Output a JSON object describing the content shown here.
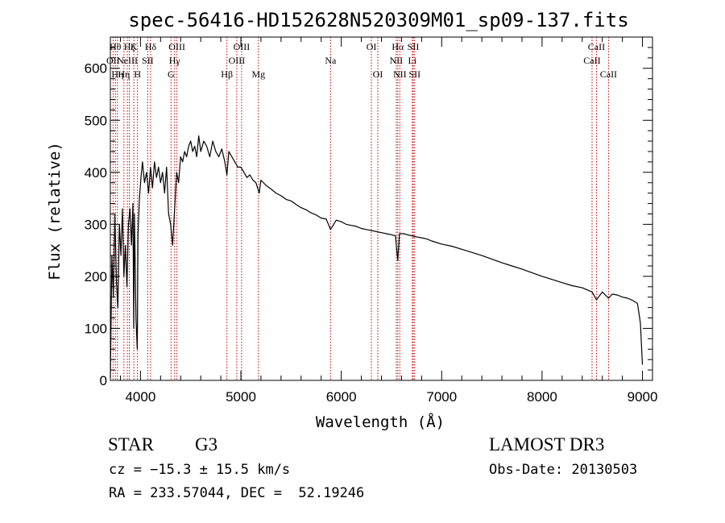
{
  "chart_data": {
    "type": "line",
    "title": "spec-56416-HD152628N520309M01_sp09-137.fits",
    "xlabel": "Wavelength (Å)",
    "ylabel": "Flux (relative)",
    "xlim": [
      3700,
      9100
    ],
    "ylim": [
      0,
      660
    ],
    "x_ticks": [
      4000,
      5000,
      6000,
      7000,
      8000,
      9000
    ],
    "y_ticks": [
      0,
      100,
      200,
      300,
      400,
      500,
      600
    ],
    "grid": false,
    "line_color": "#000000",
    "marker_color": "#c00000",
    "series": [
      {
        "x": [
          3700,
          3715,
          3730,
          3745,
          3760,
          3775,
          3790,
          3805,
          3820,
          3835,
          3850,
          3865,
          3880,
          3895,
          3910,
          3925,
          3933,
          3940,
          3955,
          3968,
          3975,
          3990,
          4005,
          4020,
          4040,
          4060,
          4080,
          4100,
          4120,
          4140,
          4160,
          4180,
          4200,
          4220,
          4240,
          4260,
          4280,
          4300,
          4320,
          4340,
          4360,
          4380,
          4400,
          4420,
          4440,
          4460,
          4480,
          4500,
          4520,
          4540,
          4560,
          4580,
          4600,
          4630,
          4660,
          4690,
          4720,
          4750,
          4780,
          4810,
          4840,
          4861,
          4880,
          4910,
          4940,
          4970,
          5000,
          5030,
          5060,
          5090,
          5120,
          5150,
          5183,
          5200,
          5250,
          5300,
          5350,
          5400,
          5450,
          5500,
          5550,
          5600,
          5650,
          5700,
          5750,
          5800,
          5850,
          5893,
          5950,
          6000,
          6050,
          6100,
          6150,
          6200,
          6250,
          6300,
          6350,
          6400,
          6450,
          6500,
          6540,
          6563,
          6580,
          6620,
          6660,
          6700,
          6750,
          6800,
          6850,
          6900,
          7000,
          7100,
          7200,
          7300,
          7400,
          7500,
          7600,
          7700,
          7800,
          7900,
          8000,
          8100,
          8200,
          8300,
          8400,
          8498,
          8542,
          8600,
          8662,
          8700,
          8750,
          8800,
          8850,
          8900,
          8950,
          8980,
          9000
        ],
        "y": [
          5,
          240,
          160,
          320,
          190,
          140,
          300,
          240,
          330,
          200,
          260,
          180,
          300,
          330,
          260,
          340,
          100,
          320,
          120,
          60,
          280,
          350,
          390,
          420,
          380,
          400,
          360,
          410,
          370,
          420,
          390,
          410,
          380,
          400,
          360,
          410,
          320,
          300,
          260,
          330,
          400,
          380,
          430,
          420,
          440,
          430,
          450,
          460,
          440,
          450,
          430,
          470,
          440,
          460,
          450,
          430,
          460,
          440,
          430,
          445,
          420,
          395,
          440,
          430,
          420,
          410,
          410,
          400,
          390,
          395,
          385,
          380,
          360,
          385,
          375,
          368,
          360,
          355,
          348,
          345,
          338,
          332,
          328,
          322,
          318,
          312,
          310,
          290,
          308,
          305,
          300,
          298,
          296,
          292,
          290,
          288,
          286,
          284,
          282,
          280,
          278,
          230,
          282,
          282,
          280,
          278,
          276,
          274,
          272,
          268,
          262,
          258,
          252,
          246,
          240,
          233,
          226,
          220,
          214,
          207,
          200,
          194,
          188,
          182,
          178,
          170,
          155,
          170,
          158,
          166,
          164,
          160,
          158,
          154,
          148,
          110,
          30
        ]
      }
    ],
    "lines": [
      {
        "x": 3727,
        "labels": [
          "OII"
        ],
        "row": 2
      },
      {
        "x": 3750,
        "labels": [
          "Hθ"
        ],
        "row": 1
      },
      {
        "x": 3771,
        "labels": [
          "Hη"
        ],
        "row": 3
      },
      {
        "x": 3835,
        "labels": [
          "Hη"
        ],
        "row": 3
      },
      {
        "x": 3869,
        "labels": [
          "NeIII"
        ],
        "row": 2
      },
      {
        "x": 3889,
        "labels": [
          "Hζ"
        ],
        "row": 1
      },
      {
        "x": 3934,
        "labels": [
          "K"
        ],
        "row": 1
      },
      {
        "x": 3970,
        "labels": [
          "H"
        ],
        "row": 3
      },
      {
        "x": 4101,
        "labels": [
          "Hδ"
        ],
        "row": 1
      },
      {
        "x": 4072,
        "labels": [
          "SII"
        ],
        "row": 2
      },
      {
        "x": 4304,
        "labels": [
          "G"
        ],
        "row": 3
      },
      {
        "x": 4340,
        "labels": [
          "Hγ"
        ],
        "row": 2
      },
      {
        "x": 4363,
        "labels": [
          "OIII"
        ],
        "row": 1
      },
      {
        "x": 4861,
        "labels": [
          "Hβ"
        ],
        "row": 3
      },
      {
        "x": 4959,
        "labels": [
          "OIII"
        ],
        "row": 2
      },
      {
        "x": 5007,
        "labels": [
          "OIII"
        ],
        "row": 1
      },
      {
        "x": 5175,
        "labels": [
          "Mg"
        ],
        "row": 3
      },
      {
        "x": 5893,
        "labels": [
          "Na"
        ],
        "row": 2
      },
      {
        "x": 6300,
        "labels": [
          "OI"
        ],
        "row": 1
      },
      {
        "x": 6364,
        "labels": [
          "OI"
        ],
        "row": 3
      },
      {
        "x": 6548,
        "labels": [
          "NII"
        ],
        "row": 2
      },
      {
        "x": 6563,
        "labels": [
          "Hα"
        ],
        "row": 1
      },
      {
        "x": 6583,
        "labels": [
          "NII"
        ],
        "row": 3
      },
      {
        "x": 6708,
        "labels": [
          "Li"
        ],
        "row": 2
      },
      {
        "x": 6717,
        "labels": [
          "SII"
        ],
        "row": 1
      },
      {
        "x": 6731,
        "labels": [
          "SII"
        ],
        "row": 3
      },
      {
        "x": 8498,
        "labels": [
          "CaII"
        ],
        "row": 2
      },
      {
        "x": 8542,
        "labels": [
          "CaII"
        ],
        "row": 1
      },
      {
        "x": 8662,
        "labels": [
          "CaII"
        ],
        "row": 3
      }
    ]
  },
  "info": {
    "object_class": "STAR",
    "subclass": "G3",
    "survey": "LAMOST DR3",
    "cz": "cz = −15.3 ± 15.5 km/s",
    "obs_date": "Obs-Date: 20130503",
    "coords": "RA = 233.57044, DEC =  52.19246"
  }
}
